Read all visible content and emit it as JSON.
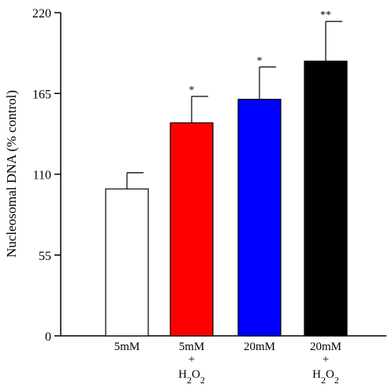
{
  "chart_data": {
    "type": "bar",
    "title": "",
    "xlabel": "",
    "ylabel": "Nucleosomal DNA (% control)",
    "ylim": [
      0,
      220
    ],
    "yticks": [
      0,
      55,
      110,
      165,
      220
    ],
    "grid": false,
    "legend": "none",
    "categories": [
      {
        "lines": [
          "5mM"
        ],
        "sub": null
      },
      {
        "lines": [
          "5mM",
          "+"
        ],
        "sub": {
          "base": "H",
          "a": "2",
          "mid": "O",
          "b": "2"
        }
      },
      {
        "lines": [
          "20mM"
        ],
        "sub": null
      },
      {
        "lines": [
          "20mM",
          "+"
        ],
        "sub": {
          "base": "H",
          "a": "2",
          "mid": "O",
          "b": "2"
        }
      }
    ],
    "values": [
      100,
      145,
      161,
      187
    ],
    "errors": [
      11,
      18,
      22,
      27
    ],
    "significance": [
      "",
      "*",
      "*",
      "**"
    ],
    "colors": [
      "#ffffff",
      "#ff0000",
      "#0000ff",
      "#000000"
    ]
  }
}
